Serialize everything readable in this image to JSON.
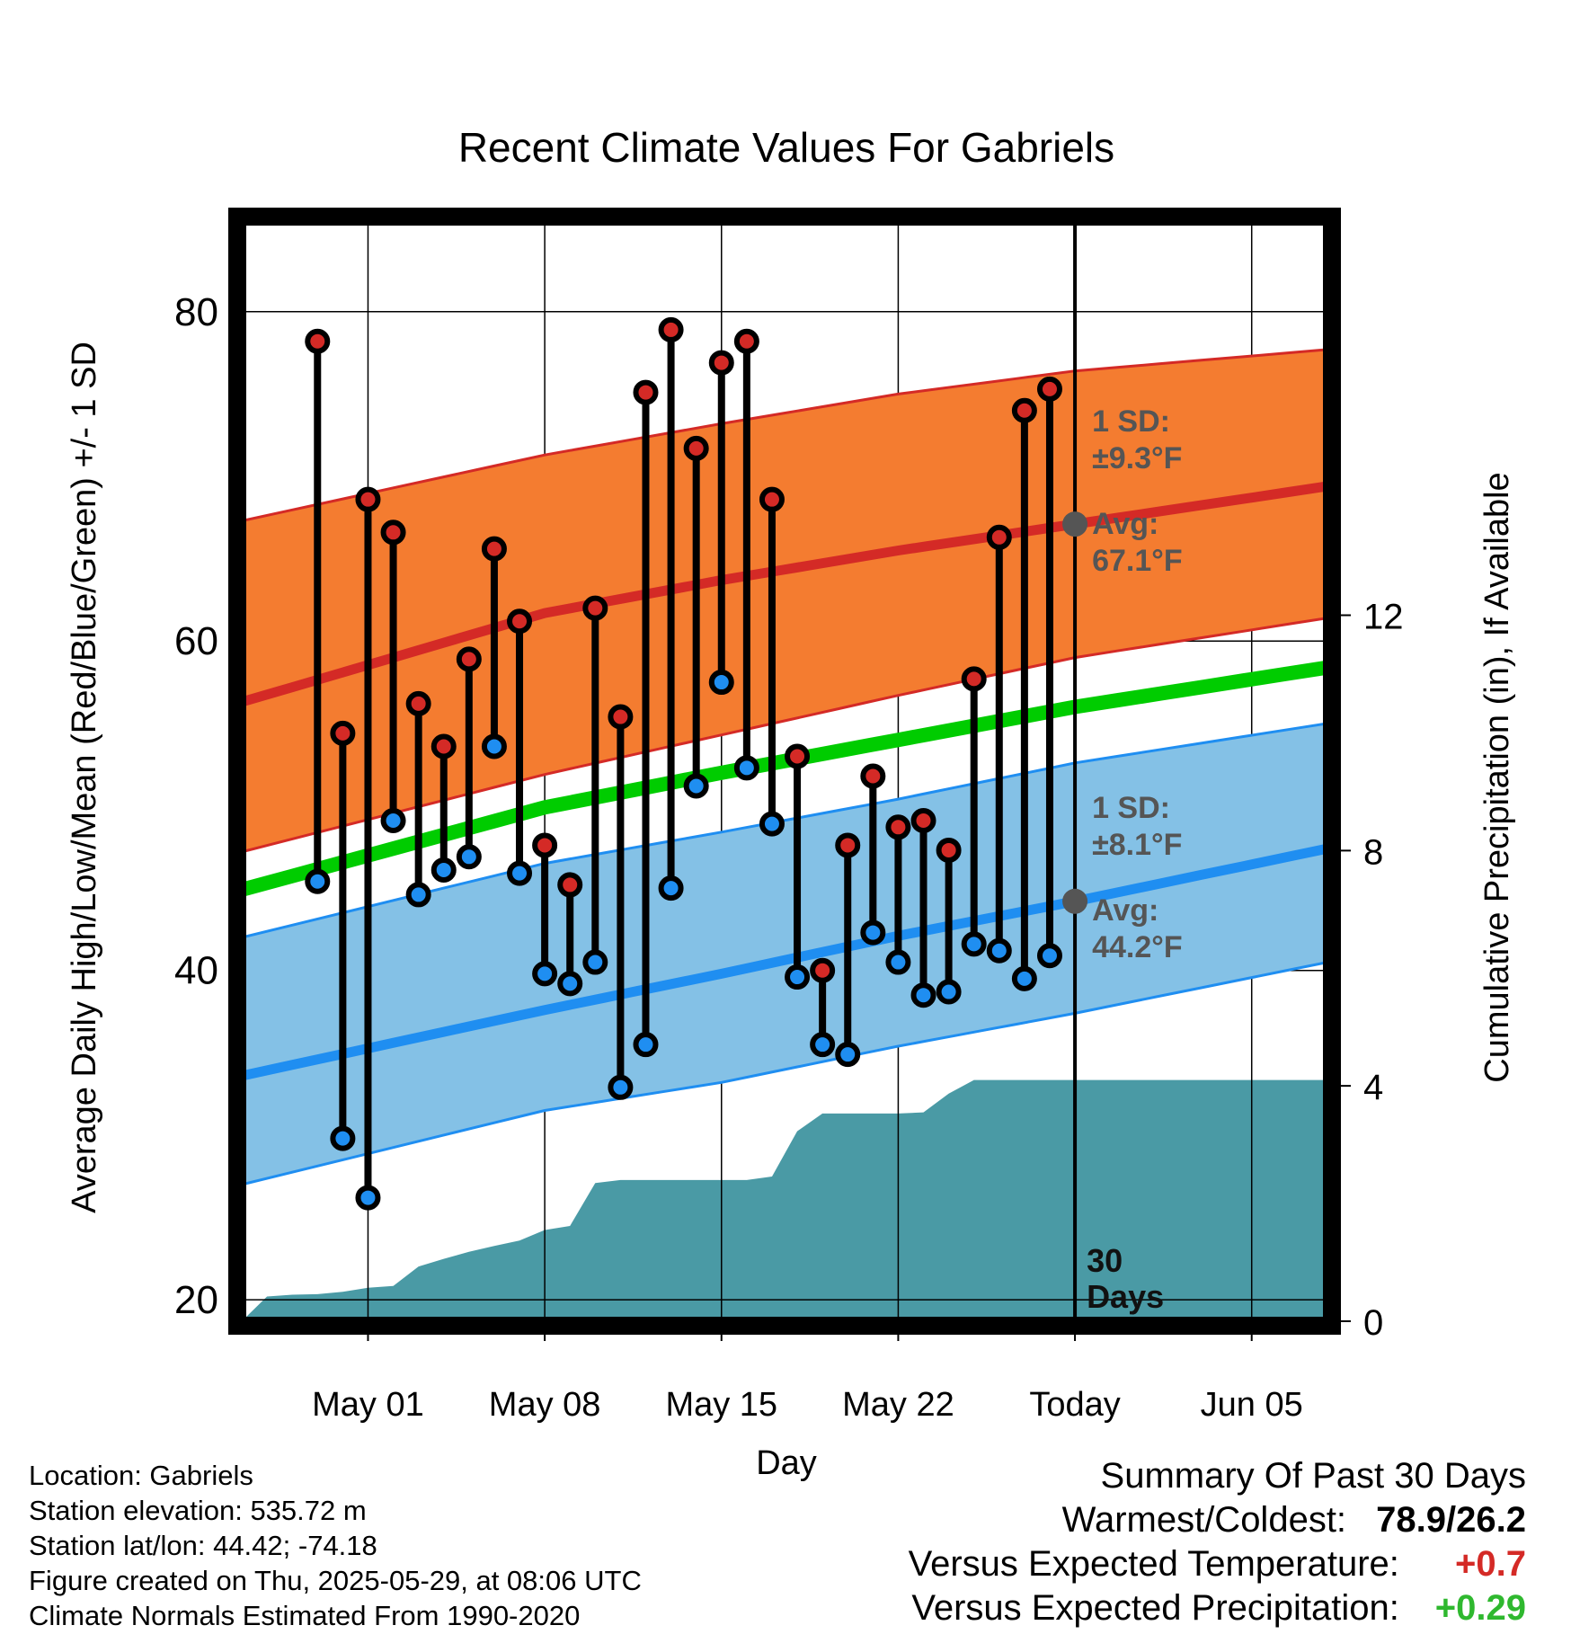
{
  "chart_data": {
    "type": "line",
    "title": "Recent Climate Values For Gabriels",
    "xlabel": "Day",
    "ylabel": "Average Daily High/Low/Mean (Red/Blue/Green) +/- 1 SD",
    "y2label": "Cumulative Precipitation (in), If Available",
    "ylim": [
      18.7,
      85.5
    ],
    "y2lim": [
      0,
      18.7
    ],
    "y_ticks": [
      20,
      40,
      60,
      80
    ],
    "y2_ticks": [
      0,
      4,
      8,
      12
    ],
    "x_range": [
      "2025-04-26",
      "2025-06-08"
    ],
    "x_ticks": [
      {
        "date": "2025-05-01",
        "label": "May 01"
      },
      {
        "date": "2025-05-08",
        "label": "May 08"
      },
      {
        "date": "2025-05-15",
        "label": "May 15"
      },
      {
        "date": "2025-05-22",
        "label": "May 22"
      },
      {
        "date": "2025-05-29",
        "label": "Today"
      },
      {
        "date": "2025-06-05",
        "label": "Jun 05"
      }
    ],
    "grid": true,
    "today": "2025-05-29",
    "today_label": "30 Days",
    "normals": {
      "dates": [
        "2025-04-26",
        "2025-05-08",
        "2025-05-15",
        "2025-05-22",
        "2025-05-29",
        "2025-06-08"
      ],
      "high_mean": [
        56.3,
        61.7,
        63.7,
        65.5,
        67.1,
        69.4
      ],
      "high_upper": [
        67.3,
        71.3,
        73.2,
        75.0,
        76.4,
        77.7
      ],
      "high_lower": [
        47.2,
        51.9,
        54.3,
        56.7,
        59.0,
        61.4
      ],
      "low_mean": [
        33.6,
        37.6,
        39.8,
        42.1,
        44.2,
        47.4
      ],
      "low_upper": [
        42.0,
        46.5,
        48.4,
        50.4,
        52.6,
        55.0
      ],
      "low_lower": [
        27.0,
        31.5,
        33.2,
        35.4,
        37.4,
        40.5
      ],
      "mean": [
        44.9,
        49.9,
        52.0,
        54.0,
        56.0,
        58.4
      ]
    },
    "high_annotation": {
      "sd_label": "1 SD:",
      "sd_value": "±9.3°F",
      "avg_label": "Avg:",
      "avg_value": "67.1°F",
      "avg": 67.1
    },
    "low_annotation": {
      "sd_label": "1 SD:",
      "sd_value": "±8.1°F",
      "avg_label": "Avg:",
      "avg_value": "44.2°F",
      "avg": 44.2
    },
    "series": [
      {
        "name": "High",
        "dates": [
          "2025-04-29",
          "2025-04-30",
          "2025-05-01",
          "2025-05-02",
          "2025-05-03",
          "2025-05-04",
          "2025-05-05",
          "2025-05-06",
          "2025-05-07",
          "2025-05-08",
          "2025-05-09",
          "2025-05-10",
          "2025-05-11",
          "2025-05-12",
          "2025-05-13",
          "2025-05-14",
          "2025-05-15",
          "2025-05-16",
          "2025-05-17",
          "2025-05-18",
          "2025-05-19",
          "2025-05-20",
          "2025-05-21",
          "2025-05-22",
          "2025-05-23",
          "2025-05-24",
          "2025-05-25",
          "2025-05-26",
          "2025-05-27",
          "2025-05-28"
        ],
        "values": [
          78.2,
          54.4,
          68.6,
          66.6,
          56.2,
          53.6,
          58.9,
          65.6,
          61.2,
          47.6,
          45.2,
          62.0,
          55.4,
          75.1,
          78.9,
          71.7,
          76.9,
          78.2,
          68.6,
          53.0,
          40.0,
          47.6,
          51.8,
          48.7,
          49.1,
          47.3,
          57.7,
          66.3,
          74.0,
          75.3
        ]
      },
      {
        "name": "Low",
        "dates": [
          "2025-04-29",
          "2025-04-30",
          "2025-05-01",
          "2025-05-02",
          "2025-05-03",
          "2025-05-04",
          "2025-05-05",
          "2025-05-06",
          "2025-05-07",
          "2025-05-08",
          "2025-05-09",
          "2025-05-10",
          "2025-05-11",
          "2025-05-12",
          "2025-05-13",
          "2025-05-14",
          "2025-05-15",
          "2025-05-16",
          "2025-05-17",
          "2025-05-18",
          "2025-05-19",
          "2025-05-20",
          "2025-05-21",
          "2025-05-22",
          "2025-05-23",
          "2025-05-24",
          "2025-05-25",
          "2025-05-26",
          "2025-05-27",
          "2025-05-28"
        ],
        "values": [
          45.4,
          29.8,
          26.2,
          49.1,
          44.6,
          46.1,
          46.9,
          53.6,
          45.9,
          39.8,
          39.2,
          40.5,
          32.9,
          35.5,
          45.0,
          51.2,
          57.5,
          52.3,
          48.9,
          39.6,
          35.5,
          34.9,
          42.3,
          40.5,
          38.5,
          38.7,
          41.6,
          41.2,
          39.5,
          40.9
        ]
      },
      {
        "name": "Cumulative Precipitation",
        "dates": [
          "2025-04-26",
          "2025-04-26",
          "2025-04-27",
          "2025-04-28",
          "2025-04-29",
          "2025-04-30",
          "2025-05-01",
          "2025-05-02",
          "2025-05-03",
          "2025-05-04",
          "2025-05-05",
          "2025-05-06",
          "2025-05-07",
          "2025-05-08",
          "2025-05-09",
          "2025-05-10",
          "2025-05-11",
          "2025-05-12",
          "2025-05-13",
          "2025-05-14",
          "2025-05-15",
          "2025-05-16",
          "2025-05-17",
          "2025-05-18",
          "2025-05-19",
          "2025-05-20",
          "2025-05-21",
          "2025-05-22",
          "2025-05-23",
          "2025-05-24",
          "2025-05-25",
          "2025-05-26",
          "2025-05-27",
          "2025-05-28",
          "2025-05-29",
          "2025-06-08"
        ],
        "values": [
          0,
          0,
          0.42,
          0.45,
          0.46,
          0.5,
          0.57,
          0.6,
          0.93,
          1.06,
          1.18,
          1.28,
          1.37,
          1.55,
          1.62,
          2.35,
          2.4,
          2.4,
          2.4,
          2.4,
          2.4,
          2.4,
          2.46,
          3.23,
          3.53,
          3.53,
          3.53,
          3.53,
          3.55,
          3.87,
          4.1,
          4.1,
          4.1,
          4.1,
          4.1,
          4.1
        ]
      }
    ]
  },
  "footer": {
    "location": "Location: Gabriels",
    "elevation": "Station elevation: 535.72 m",
    "latlon": "Station lat/lon: 44.42; -74.18",
    "created": "Figure created on Thu, 2025-05-29, at 08:06 UTC",
    "normals": "Climate Normals Estimated From 1990-2020"
  },
  "summary": {
    "title": "Summary Of Past 30 Days",
    "warm_cold_label": "Warmest/Coldest:",
    "warm_cold_value": "78.9/26.2",
    "temp_label": "Versus Expected Temperature:",
    "temp_value": "+0.7",
    "precip_label": "Versus Expected Precipitation:",
    "precip_value": "+0.29"
  },
  "colors": {
    "high_band": "#f47c30",
    "high_line": "#d42a26",
    "low_band": "#84c1e6",
    "low_line": "#1f8ef1",
    "mean_line": "#00cc00",
    "precip": "#4a9aa5",
    "high_dot": "#d42a26",
    "low_dot": "#1f8ef1",
    "annotation": "#555555",
    "temp_delta": "#d42a26",
    "precip_delta": "#2fb82f"
  }
}
